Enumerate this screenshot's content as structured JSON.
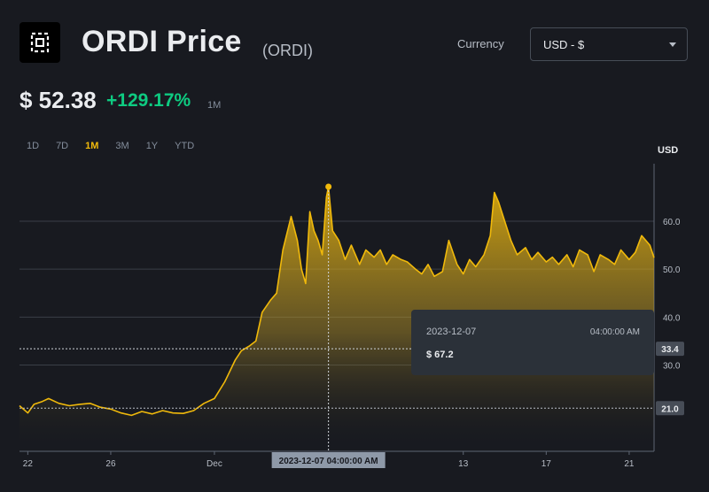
{
  "header": {
    "logo_icon": "ordi-logo-icon",
    "title": "ORDI Price",
    "symbol": "(ORDI)",
    "currency_label": "Currency",
    "currency_value": "USD - $"
  },
  "price": {
    "value": "$ 52.38",
    "change": "+129.17%",
    "period": "1M"
  },
  "ranges": [
    "1D",
    "7D",
    "1M",
    "3M",
    "1Y",
    "YTD"
  ],
  "active_range": "1M",
  "tooltip": {
    "date": "2023-12-07",
    "time": "04:00:00 AM",
    "price": "$ 67.2"
  },
  "crosshair_x_label": "2023-12-07 04:00:00 AM",
  "markers": {
    "crosshair_price": "33.4",
    "baseline_price": "21.0",
    "crosshair_value": 33.4,
    "baseline_value": 21.0,
    "highlight_value": 67.2
  },
  "colors": {
    "line": "#f0b90b",
    "positive": "#0ecb81",
    "background": "#181a20"
  },
  "chart_data": {
    "type": "area",
    "ylabel": "USD",
    "yticks": [
      30,
      40,
      50,
      60
    ],
    "ylim": [
      12,
      72
    ],
    "xticks": [
      {
        "label": "22",
        "day": 22
      },
      {
        "label": "26",
        "day": 26
      },
      {
        "label": "Dec",
        "day": 31
      },
      {
        "label": "13",
        "day": 43
      },
      {
        "label": "17",
        "day": 47
      },
      {
        "label": "21",
        "day": 51
      }
    ],
    "xlim": [
      21.6,
      52.2
    ],
    "highlight": {
      "day": 36.5,
      "value": 67.2
    },
    "grid": true,
    "x": [
      21.6,
      22.0,
      22.3,
      22.7,
      23.0,
      23.5,
      24.0,
      24.5,
      25.0,
      25.5,
      26.0,
      26.5,
      27.0,
      27.5,
      28.0,
      28.5,
      29.0,
      29.5,
      30.0,
      30.5,
      31.0,
      31.5,
      32.0,
      32.3,
      32.7,
      33.0,
      33.3,
      33.7,
      34.0,
      34.3,
      34.7,
      35.0,
      35.2,
      35.4,
      35.6,
      35.8,
      36.0,
      36.2,
      36.4,
      36.5,
      36.7,
      37.0,
      37.3,
      37.6,
      38.0,
      38.3,
      38.7,
      39.0,
      39.3,
      39.6,
      40.0,
      40.3,
      40.7,
      41.0,
      41.3,
      41.6,
      42.0,
      42.3,
      42.7,
      43.0,
      43.3,
      43.6,
      44.0,
      44.3,
      44.5,
      44.7,
      45.0,
      45.3,
      45.6,
      46.0,
      46.3,
      46.6,
      47.0,
      47.3,
      47.6,
      48.0,
      48.3,
      48.6,
      49.0,
      49.3,
      49.6,
      50.0,
      50.3,
      50.6,
      51.0,
      51.3,
      51.6,
      52.0,
      52.2
    ],
    "y": [
      21.5,
      20.0,
      21.8,
      22.4,
      23.0,
      22.0,
      21.5,
      21.8,
      22.0,
      21.2,
      20.8,
      20.0,
      19.5,
      20.3,
      19.8,
      20.5,
      20.0,
      19.9,
      20.5,
      22.0,
      23.0,
      26.5,
      31.0,
      33.0,
      34.0,
      35.0,
      41.0,
      43.5,
      45.0,
      54.0,
      61.0,
      56.0,
      50.0,
      47.0,
      62.0,
      58.0,
      56.0,
      53.0,
      65.0,
      67.2,
      58.0,
      56.0,
      52.0,
      55.0,
      51.0,
      54.0,
      52.5,
      54.0,
      51.0,
      53.0,
      52.0,
      51.5,
      50.0,
      49.0,
      51.0,
      48.5,
      49.5,
      56.0,
      51.0,
      49.0,
      52.0,
      50.5,
      53.0,
      57.0,
      66.0,
      64.0,
      60.0,
      56.0,
      53.0,
      54.5,
      52.0,
      53.5,
      51.5,
      52.5,
      51.0,
      53.0,
      50.5,
      54.0,
      53.0,
      49.5,
      53.0,
      52.0,
      51.0,
      54.0,
      52.0,
      53.5,
      57.0,
      55.0,
      52.4
    ]
  }
}
